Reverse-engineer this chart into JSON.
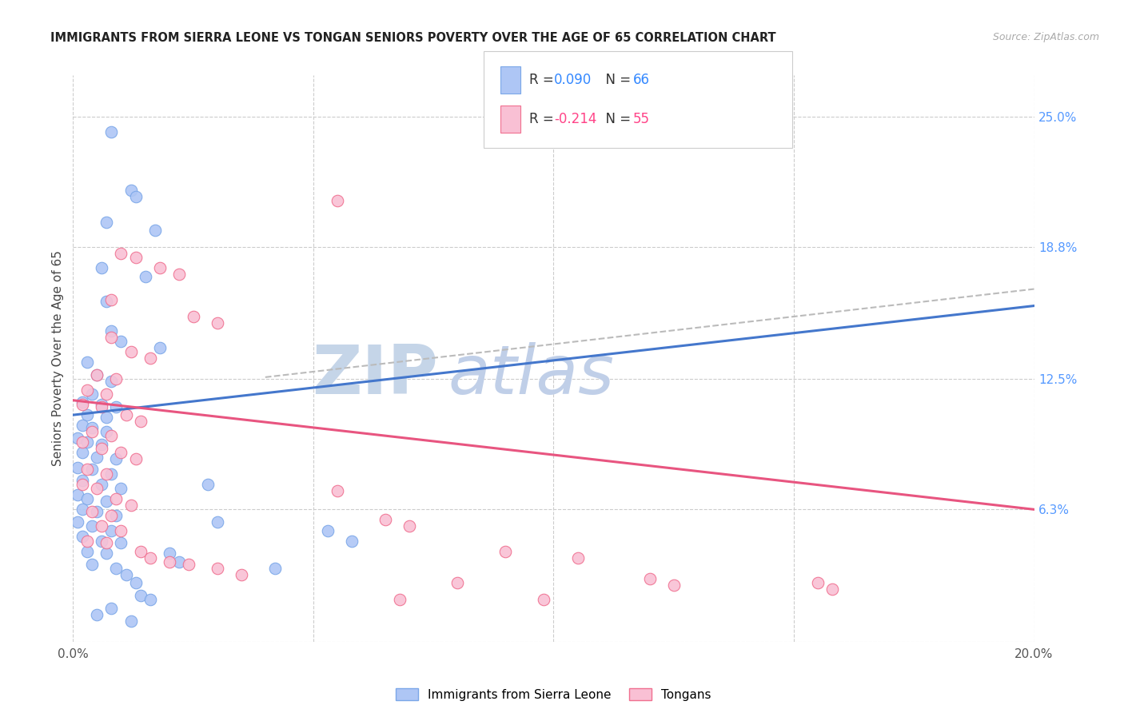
{
  "title": "IMMIGRANTS FROM SIERRA LEONE VS TONGAN SENIORS POVERTY OVER THE AGE OF 65 CORRELATION CHART",
  "source": "Source: ZipAtlas.com",
  "ylabel": "Seniors Poverty Over the Age of 65",
  "xlim": [
    0.0,
    0.2
  ],
  "ylim": [
    0.0,
    0.27
  ],
  "blue_color": "#aec6f5",
  "pink_color": "#f9c0d4",
  "blue_edge": "#7ba7e8",
  "pink_edge": "#f07090",
  "blue_line_color": "#4477cc",
  "pink_line_color": "#e85580",
  "gray_line_color": "#bbbbbb",
  "watermark_zip_color": "#c5d5e8",
  "watermark_atlas_color": "#c0cfe8",
  "blue_r_color": "#3388ff",
  "pink_r_color": "#ff4488",
  "blue_line_x": [
    0.0,
    0.2
  ],
  "blue_line_y": [
    0.108,
    0.16
  ],
  "pink_line_x": [
    0.0,
    0.2
  ],
  "pink_line_y": [
    0.115,
    0.063
  ],
  "gray_dashed_line_x": [
    0.04,
    0.2
  ],
  "gray_dashed_line_y": [
    0.126,
    0.168
  ],
  "blue_scatter": [
    [
      0.008,
      0.243
    ],
    [
      0.012,
      0.215
    ],
    [
      0.013,
      0.212
    ],
    [
      0.007,
      0.2
    ],
    [
      0.017,
      0.196
    ],
    [
      0.006,
      0.178
    ],
    [
      0.015,
      0.174
    ],
    [
      0.007,
      0.162
    ],
    [
      0.008,
      0.148
    ],
    [
      0.01,
      0.143
    ],
    [
      0.018,
      0.14
    ],
    [
      0.003,
      0.133
    ],
    [
      0.005,
      0.127
    ],
    [
      0.008,
      0.124
    ],
    [
      0.004,
      0.118
    ],
    [
      0.002,
      0.114
    ],
    [
      0.006,
      0.113
    ],
    [
      0.009,
      0.112
    ],
    [
      0.003,
      0.108
    ],
    [
      0.007,
      0.107
    ],
    [
      0.002,
      0.103
    ],
    [
      0.004,
      0.102
    ],
    [
      0.007,
      0.1
    ],
    [
      0.001,
      0.097
    ],
    [
      0.003,
      0.095
    ],
    [
      0.006,
      0.094
    ],
    [
      0.002,
      0.09
    ],
    [
      0.005,
      0.088
    ],
    [
      0.009,
      0.087
    ],
    [
      0.001,
      0.083
    ],
    [
      0.004,
      0.082
    ],
    [
      0.008,
      0.08
    ],
    [
      0.002,
      0.077
    ],
    [
      0.006,
      0.075
    ],
    [
      0.01,
      0.073
    ],
    [
      0.001,
      0.07
    ],
    [
      0.003,
      0.068
    ],
    [
      0.007,
      0.067
    ],
    [
      0.002,
      0.063
    ],
    [
      0.005,
      0.062
    ],
    [
      0.009,
      0.06
    ],
    [
      0.001,
      0.057
    ],
    [
      0.004,
      0.055
    ],
    [
      0.008,
      0.053
    ],
    [
      0.002,
      0.05
    ],
    [
      0.006,
      0.048
    ],
    [
      0.01,
      0.047
    ],
    [
      0.003,
      0.043
    ],
    [
      0.007,
      0.042
    ],
    [
      0.004,
      0.037
    ],
    [
      0.009,
      0.035
    ],
    [
      0.011,
      0.032
    ],
    [
      0.013,
      0.028
    ],
    [
      0.014,
      0.022
    ],
    [
      0.016,
      0.02
    ],
    [
      0.02,
      0.042
    ],
    [
      0.022,
      0.038
    ],
    [
      0.005,
      0.013
    ],
    [
      0.008,
      0.016
    ],
    [
      0.053,
      0.053
    ],
    [
      0.058,
      0.048
    ],
    [
      0.028,
      0.075
    ],
    [
      0.03,
      0.057
    ],
    [
      0.042,
      0.035
    ],
    [
      0.012,
      0.01
    ]
  ],
  "pink_scatter": [
    [
      0.055,
      0.21
    ],
    [
      0.01,
      0.185
    ],
    [
      0.013,
      0.183
    ],
    [
      0.018,
      0.178
    ],
    [
      0.022,
      0.175
    ],
    [
      0.008,
      0.163
    ],
    [
      0.025,
      0.155
    ],
    [
      0.03,
      0.152
    ],
    [
      0.008,
      0.145
    ],
    [
      0.012,
      0.138
    ],
    [
      0.016,
      0.135
    ],
    [
      0.005,
      0.127
    ],
    [
      0.009,
      0.125
    ],
    [
      0.003,
      0.12
    ],
    [
      0.007,
      0.118
    ],
    [
      0.002,
      0.113
    ],
    [
      0.006,
      0.112
    ],
    [
      0.011,
      0.108
    ],
    [
      0.014,
      0.105
    ],
    [
      0.004,
      0.1
    ],
    [
      0.008,
      0.098
    ],
    [
      0.002,
      0.095
    ],
    [
      0.006,
      0.092
    ],
    [
      0.01,
      0.09
    ],
    [
      0.013,
      0.087
    ],
    [
      0.003,
      0.082
    ],
    [
      0.007,
      0.08
    ],
    [
      0.002,
      0.075
    ],
    [
      0.005,
      0.073
    ],
    [
      0.009,
      0.068
    ],
    [
      0.012,
      0.065
    ],
    [
      0.004,
      0.062
    ],
    [
      0.008,
      0.06
    ],
    [
      0.006,
      0.055
    ],
    [
      0.01,
      0.053
    ],
    [
      0.003,
      0.048
    ],
    [
      0.007,
      0.047
    ],
    [
      0.014,
      0.043
    ],
    [
      0.016,
      0.04
    ],
    [
      0.02,
      0.038
    ],
    [
      0.024,
      0.037
    ],
    [
      0.03,
      0.035
    ],
    [
      0.035,
      0.032
    ],
    [
      0.055,
      0.072
    ],
    [
      0.065,
      0.058
    ],
    [
      0.07,
      0.055
    ],
    [
      0.09,
      0.043
    ],
    [
      0.105,
      0.04
    ],
    [
      0.12,
      0.03
    ],
    [
      0.125,
      0.027
    ],
    [
      0.155,
      0.028
    ],
    [
      0.158,
      0.025
    ],
    [
      0.08,
      0.028
    ],
    [
      0.068,
      0.02
    ],
    [
      0.098,
      0.02
    ]
  ]
}
